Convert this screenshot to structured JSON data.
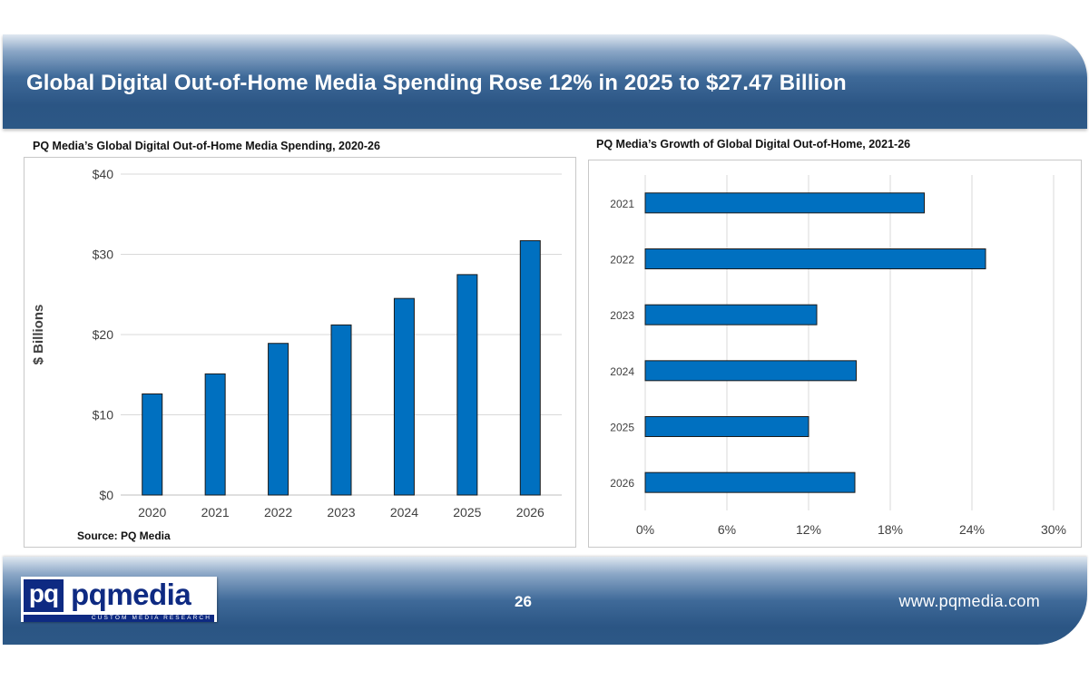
{
  "header": {
    "title": "Global Digital Out-of-Home Media Spending Rose 12% in 2025 to $27.47 Billion"
  },
  "charts": {
    "left_title": "PQ Media’s Global Digital Out-of-Home Media Spending, 2020-26",
    "right_title": "PQ Media’s Growth of Global Digital Out-of-Home, 2021-26",
    "source": "Source: PQ Media"
  },
  "footer": {
    "logo_mark": "pq",
    "logo_name": "pqmedia",
    "logo_tagline": "CUSTOM MEDIA RESEARCH",
    "page_number": "26",
    "url": "www.pqmedia.com"
  },
  "colors": {
    "bar": "#0070c0",
    "bar_stroke": "#1a1a1a",
    "grid": "#d9d9d9",
    "axis_text": "#404040"
  },
  "chart_data": [
    {
      "type": "bar",
      "title": "PQ Media’s Global Digital Out-of-Home Media Spending, 2020-26",
      "categories": [
        "2020",
        "2021",
        "2022",
        "2023",
        "2024",
        "2025",
        "2026"
      ],
      "values": [
        12.6,
        15.1,
        18.9,
        21.2,
        24.5,
        27.47,
        31.7
      ],
      "ylabel": "$ Billions",
      "xlabel": "",
      "ylim": [
        0,
        40
      ],
      "yticks": [
        0,
        10,
        20,
        30,
        40
      ],
      "ytick_labels": [
        "$0",
        "$10",
        "$20",
        "$30",
        "$40"
      ],
      "grid": true
    },
    {
      "type": "bar",
      "orientation": "horizontal",
      "title": "PQ Media’s Growth of Global Digital Out-of-Home, 2021-26",
      "categories": [
        "2021",
        "2022",
        "2023",
        "2024",
        "2025",
        "2026"
      ],
      "values": [
        20.5,
        25.0,
        12.6,
        15.5,
        12.0,
        15.4
      ],
      "xlim": [
        0,
        30
      ],
      "xticks": [
        0,
        6,
        12,
        18,
        24,
        30
      ],
      "xtick_labels": [
        "0%",
        "6%",
        "12%",
        "18%",
        "24%",
        "30%"
      ],
      "grid": true
    }
  ]
}
